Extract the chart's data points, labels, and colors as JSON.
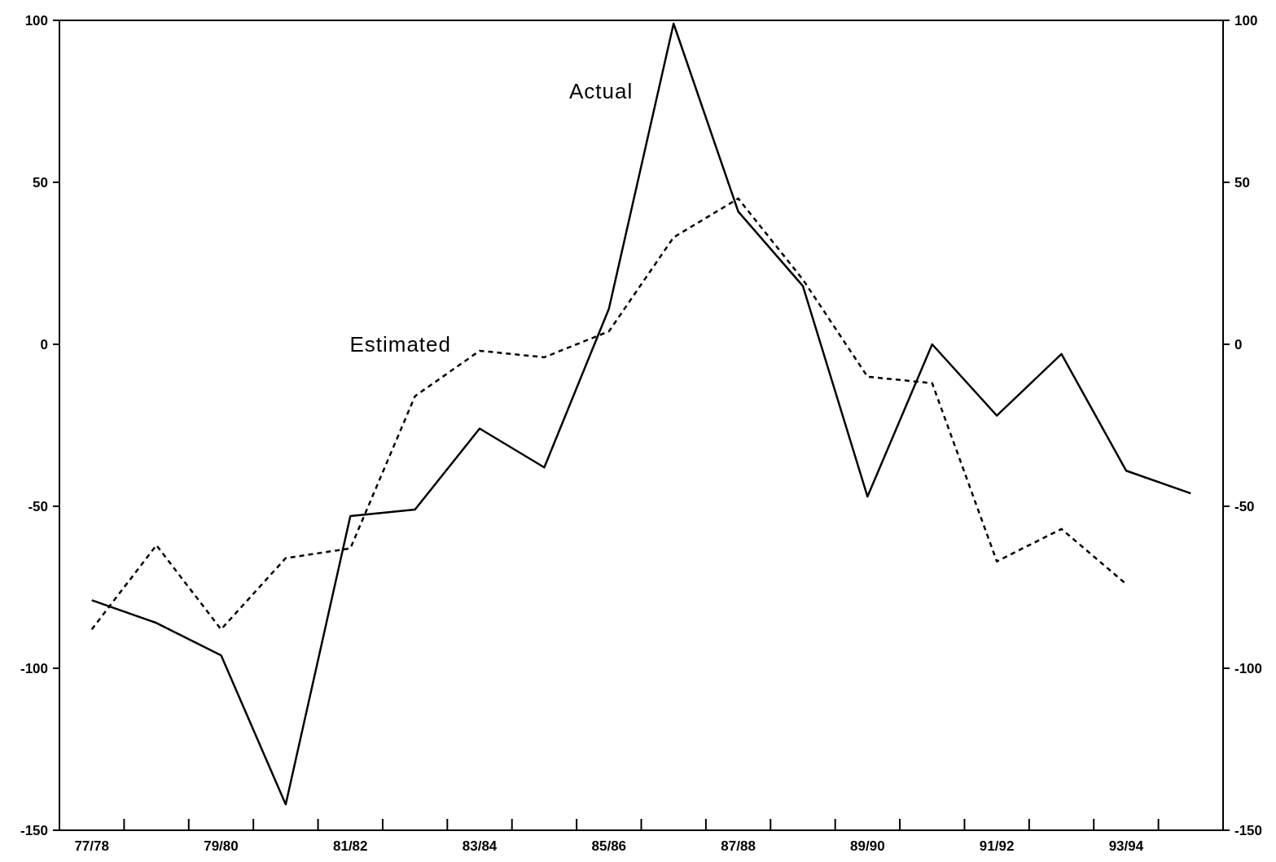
{
  "chart_data": {
    "type": "line",
    "categories": [
      "77/78",
      null,
      "79/80",
      null,
      "81/82",
      null,
      "83/84",
      null,
      "85/86",
      null,
      "87/88",
      null,
      "89/90",
      null,
      "91/92",
      null,
      "93/94",
      null
    ],
    "series": [
      {
        "name": "Actual",
        "color": "#000000",
        "line_style": "solid",
        "values": [
          -79,
          -86,
          -96,
          -142,
          -53,
          -51,
          -26,
          -38,
          11,
          99,
          41,
          18,
          -47,
          0,
          -22,
          -3,
          -39,
          -46
        ]
      },
      {
        "name": "Estimated",
        "color": "#000000",
        "line_style": "dashed",
        "values": [
          -88,
          -62,
          -88,
          -66,
          -63,
          -16,
          -2,
          -4,
          4,
          33,
          45,
          20,
          -10,
          -12,
          -67,
          -57,
          -74,
          null
        ]
      }
    ],
    "ylim": [
      -150,
      100
    ],
    "yticks": [
      -150,
      -100,
      -50,
      0,
      50,
      100
    ],
    "y2lim": [
      -150,
      100
    ],
    "y2ticks": [
      -150,
      -100,
      -50,
      0,
      50,
      100
    ],
    "grid": false,
    "marker": "none"
  }
}
